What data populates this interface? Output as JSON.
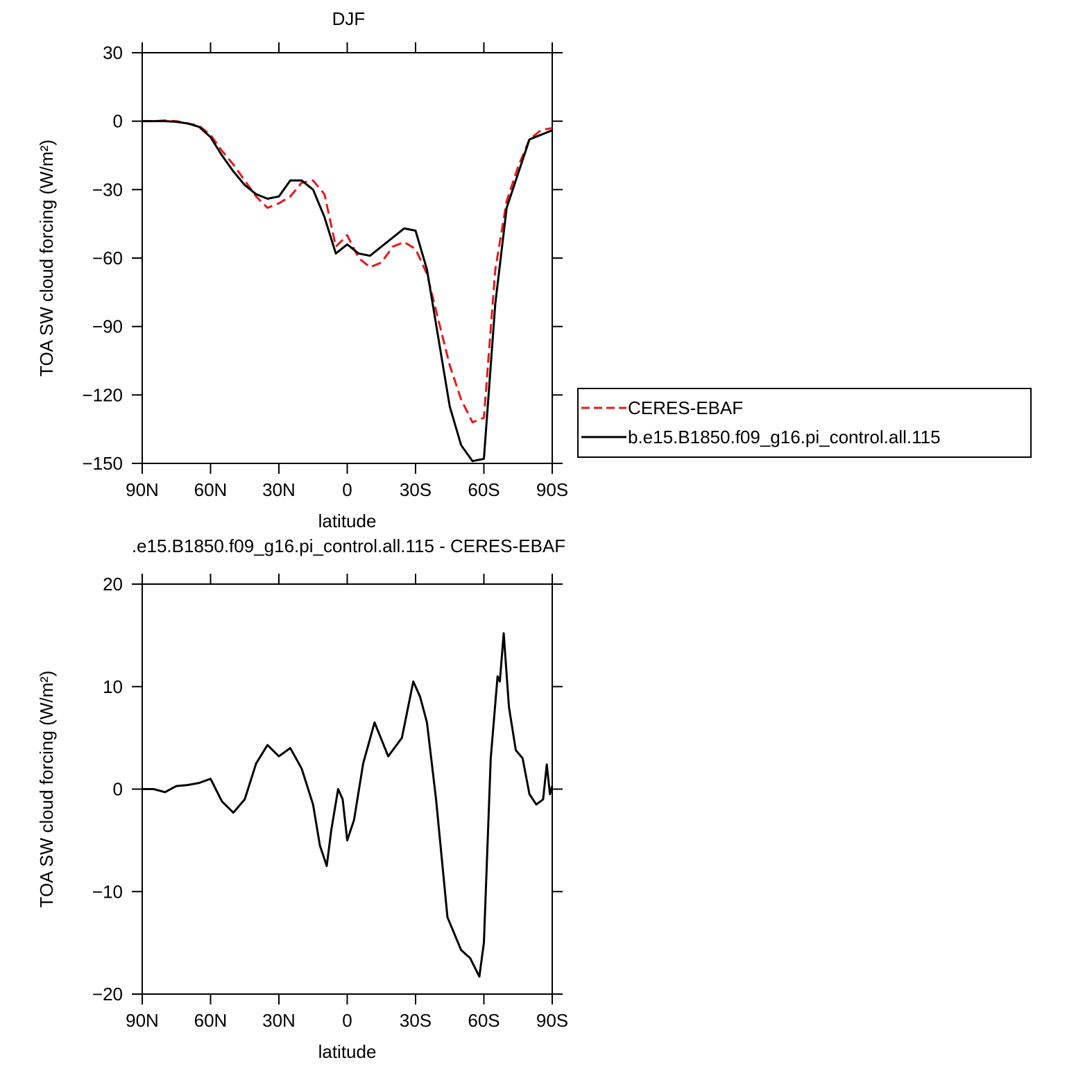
{
  "chart_data": [
    {
      "type": "line",
      "title": "DJF",
      "xlabel": "latitude",
      "ylabel": "TOA SW cloud forcing (W/m²)",
      "x": [
        90,
        85,
        80,
        75,
        70,
        65,
        60,
        55,
        50,
        45,
        40,
        35,
        30,
        25,
        20,
        15,
        10,
        5,
        0,
        -5,
        -10,
        -15,
        -20,
        -25,
        -30,
        -35,
        -40,
        -45,
        -50,
        -55,
        -60,
        -65,
        -70,
        -75,
        -80,
        -85,
        -90
      ],
      "xlim": [
        90,
        -90
      ],
      "xticks": [
        {
          "value": 90,
          "label": "90N"
        },
        {
          "value": 60,
          "label": "60N"
        },
        {
          "value": 30,
          "label": "30N"
        },
        0,
        {
          "value": -30,
          "label": "30S"
        },
        {
          "value": -60,
          "label": "60S"
        },
        {
          "value": -90,
          "label": "90S"
        }
      ],
      "ylim": [
        -150,
        30
      ],
      "yticks": [
        {
          "value": -150,
          "label": "−150"
        },
        {
          "value": -120,
          "label": "−120"
        },
        {
          "value": -90,
          "label": "−90"
        },
        {
          "value": -60,
          "label": "−60"
        },
        {
          "value": -30,
          "label": "−30"
        },
        0,
        30
      ],
      "legend": "right",
      "series": [
        {
          "name": "CERES-EBAF",
          "color": "#e41a1c",
          "dashed": true,
          "values": [
            0,
            0,
            0.3,
            0,
            -1,
            -2,
            -6,
            -13,
            -19,
            -26,
            -33,
            -38,
            -36,
            -33,
            -27,
            -26,
            -32,
            -55,
            -50,
            -60,
            -64,
            -62,
            -55,
            -53,
            -56,
            -67,
            -87,
            -107,
            -122,
            -132,
            -130,
            -65,
            -35,
            -20,
            -8,
            -4,
            -3
          ]
        },
        {
          "name": "b.e15.B1850.f09_g16.pi_control.all.115",
          "color": "#000000",
          "dashed": false,
          "values": [
            0,
            0,
            0,
            -0.3,
            -1,
            -2.5,
            -7,
            -15,
            -22,
            -28,
            -32,
            -34,
            -33,
            -26,
            -26,
            -30,
            -42,
            -58,
            -54,
            -58,
            -59,
            -55,
            -51,
            -47,
            -48,
            -65,
            -95,
            -125,
            -142,
            -149,
            -148,
            -80,
            -38,
            -23,
            -8,
            -6,
            -4
          ]
        }
      ]
    },
    {
      "type": "line",
      "title": ".e15.B1850.f09_g16.pi_control.all.115 - CERES-EBAF",
      "xlabel": "latitude",
      "ylabel": "TOA SW cloud forcing (W/m²)",
      "x": [
        90,
        85,
        80,
        75,
        70,
        65,
        60,
        55,
        50,
        45,
        40,
        35,
        30,
        25,
        20,
        15,
        12,
        9,
        7,
        4,
        2,
        0,
        -3,
        -7,
        -12,
        -18,
        -24,
        -29,
        -32,
        -35,
        -39,
        -44,
        -50,
        -54,
        -58,
        -60,
        -63,
        -66,
        -67,
        -68.7,
        -71,
        -74,
        -77,
        -80,
        -83,
        -86,
        -87.6,
        -89,
        -90
      ],
      "xlim": [
        90,
        -90
      ],
      "xticks": [
        {
          "value": 90,
          "label": "90N"
        },
        {
          "value": 60,
          "label": "60N"
        },
        {
          "value": 30,
          "label": "30N"
        },
        0,
        {
          "value": -30,
          "label": "30S"
        },
        {
          "value": -60,
          "label": "60S"
        },
        {
          "value": -90,
          "label": "90S"
        }
      ],
      "ylim": [
        -20,
        20
      ],
      "yticks": [
        {
          "value": -20,
          "label": "−20"
        },
        {
          "value": -10,
          "label": "−10"
        },
        0,
        10,
        20
      ],
      "color": "#000000",
      "values": [
        0,
        0,
        -0.3,
        0.3,
        0.4,
        0.6,
        1.0,
        -1.2,
        -2.3,
        -1.0,
        2.5,
        4.3,
        3.2,
        4.0,
        2.0,
        -1.5,
        -5.5,
        -7.5,
        -4,
        0,
        -1,
        -5,
        -3,
        2.5,
        6.5,
        3.2,
        5,
        10.5,
        9,
        6.5,
        -1,
        -12.5,
        -15.7,
        -16.5,
        -18.3,
        -15,
        3,
        11,
        10.5,
        15.2,
        8,
        3.8,
        3,
        -0.5,
        -1.5,
        -1,
        2.4,
        -0.5,
        0.3
      ]
    }
  ]
}
